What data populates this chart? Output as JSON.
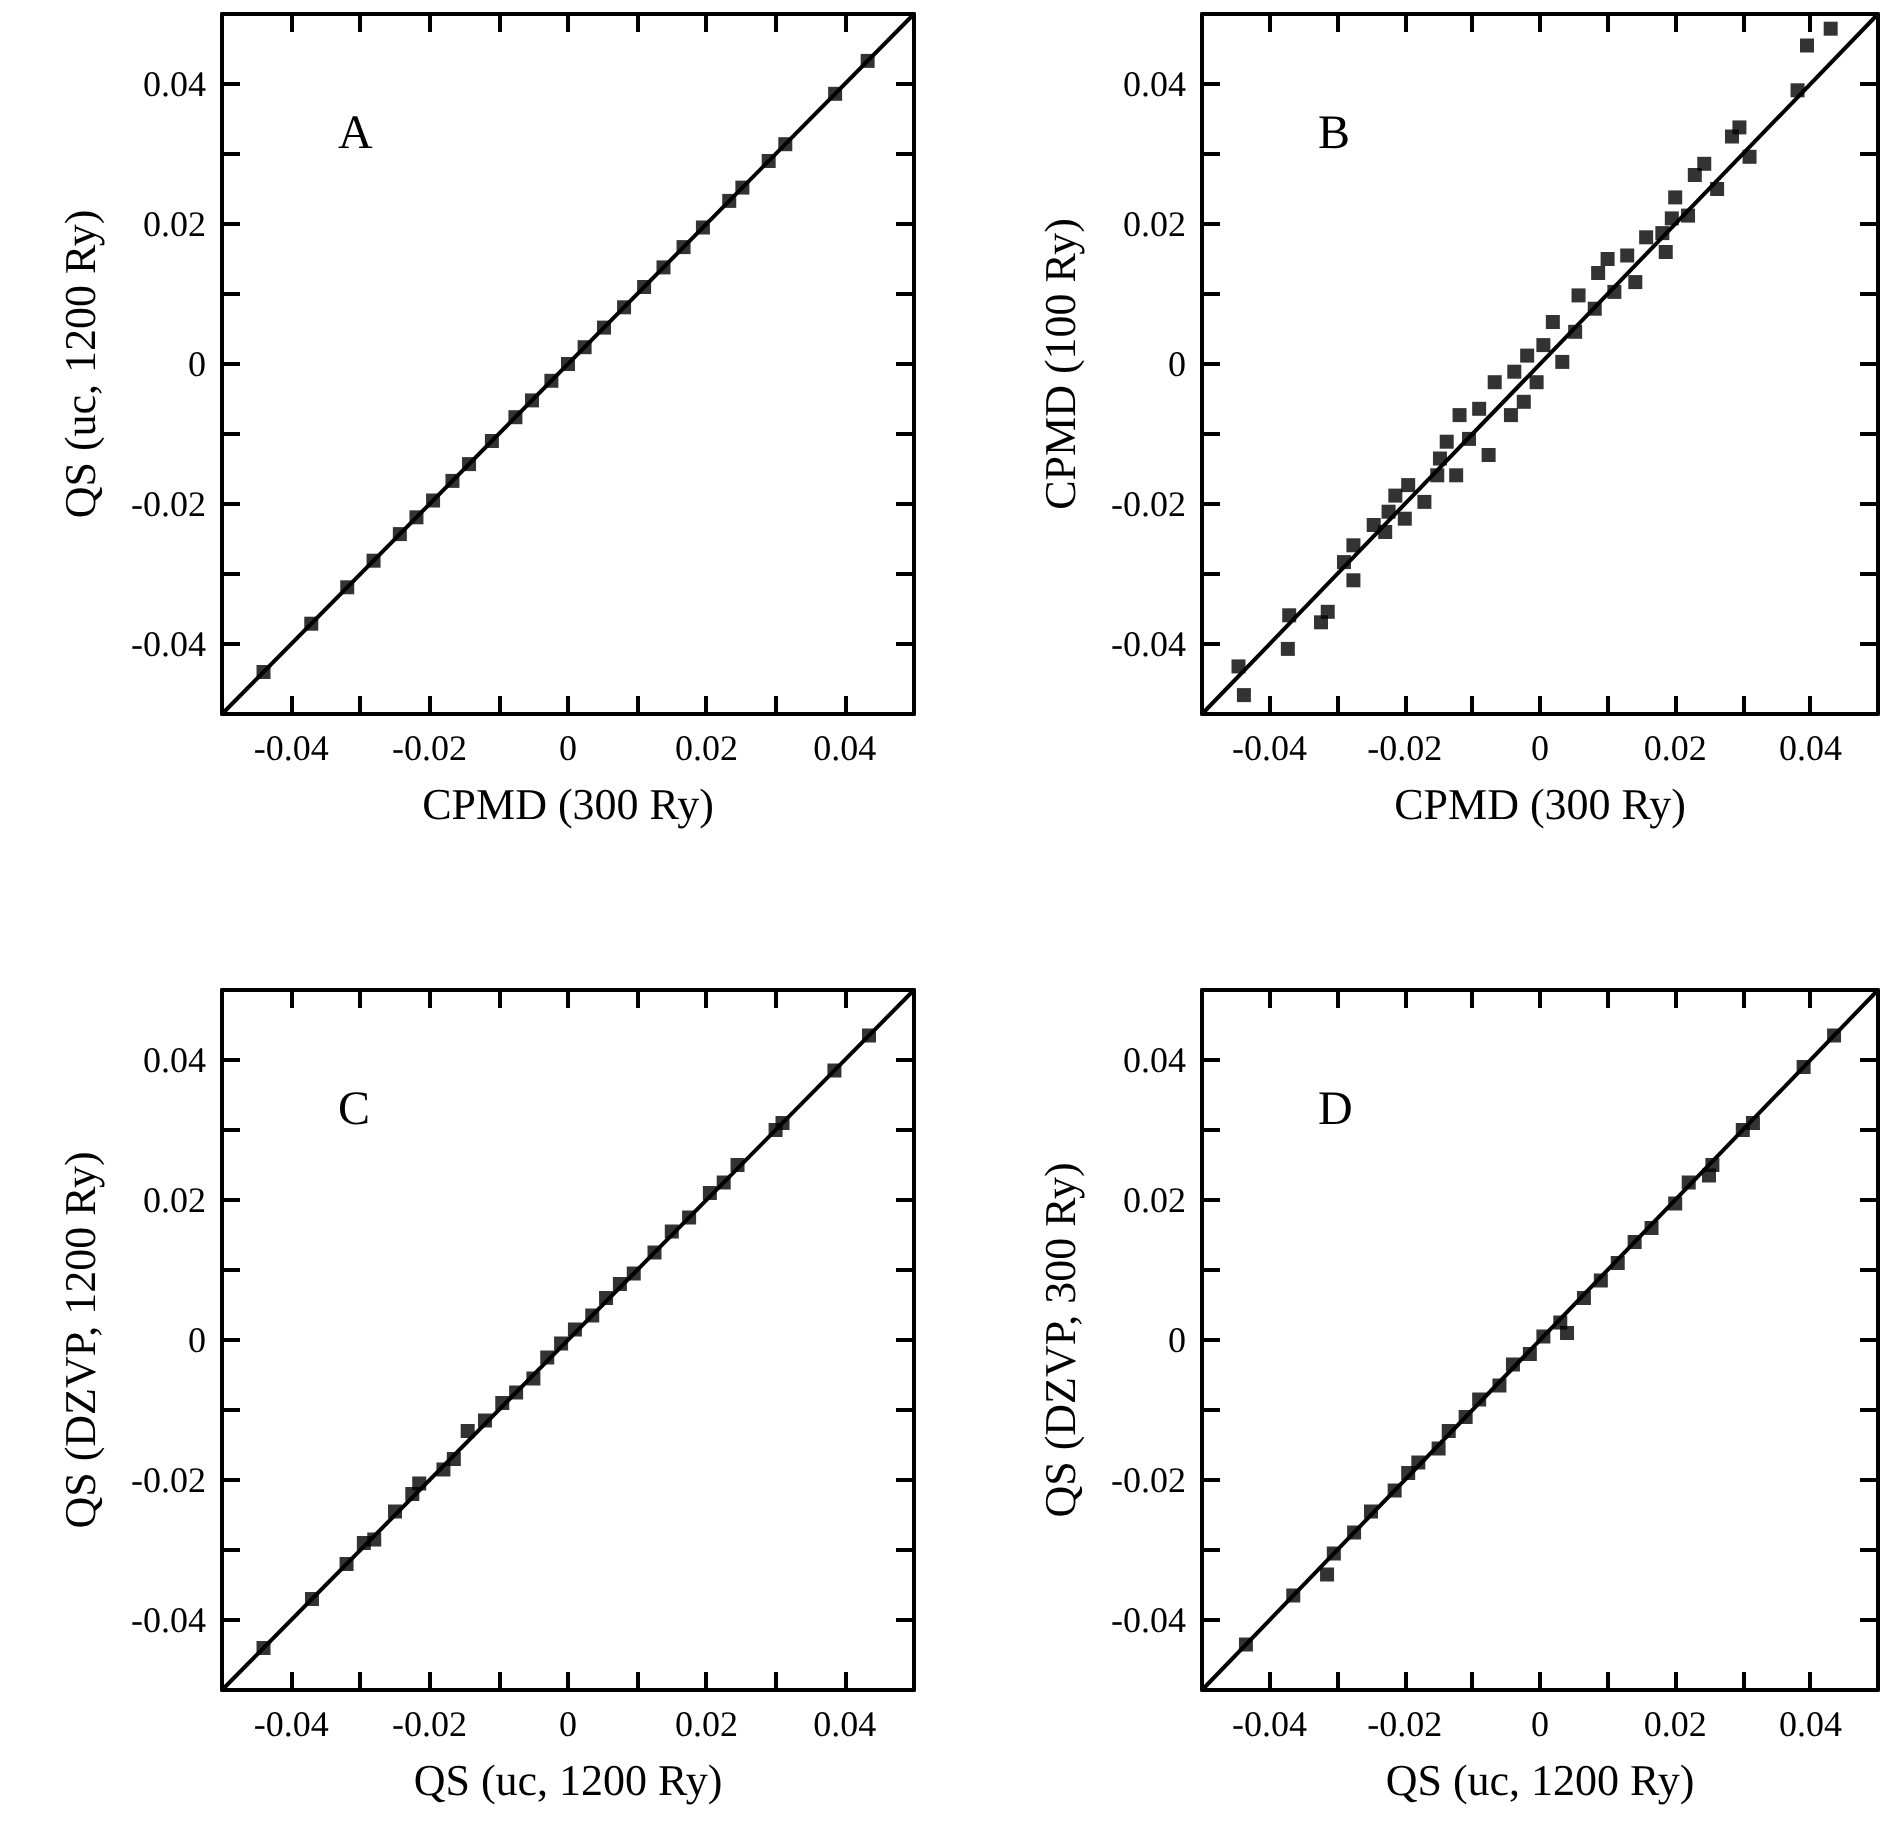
{
  "chart_data": [
    {
      "type": "scatter",
      "xlabel": "CPMD (300 Ry)",
      "ylabel": "QS (uc, 1200 Ry)",
      "annotations": [
        "A"
      ],
      "marker": "square",
      "xlim": [
        -0.05,
        0.05
      ],
      "ylim": [
        -0.05,
        0.05
      ],
      "xticks": [
        {
          "value": -0.05,
          "label": null
        },
        -0.04,
        {
          "value": -0.03,
          "label": null
        },
        -0.02,
        {
          "value": -0.01,
          "label": null
        },
        0,
        {
          "value": 0.01,
          "label": null
        },
        0.02,
        {
          "value": 0.03,
          "label": null
        },
        0.04,
        {
          "value": 0.05,
          "label": null
        }
      ],
      "yticks": [
        {
          "value": -0.05,
          "label": null
        },
        -0.04,
        {
          "value": -0.03,
          "label": null
        },
        -0.02,
        {
          "value": -0.01,
          "label": null
        },
        0,
        {
          "value": 0.01,
          "label": null
        },
        0.02,
        {
          "value": 0.03,
          "label": null
        },
        0.04,
        {
          "value": 0.05,
          "label": null
        }
      ],
      "series": [
        {
          "color": "#000000",
          "x": [
            -0.044,
            -0.0371,
            -0.0319,
            -0.0281,
            -0.0243,
            -0.0219,
            -0.0195,
            -0.0167,
            -0.0143,
            -0.011,
            -0.0076,
            -0.0052,
            -0.0024,
            0,
            0.0024,
            0.0052,
            0.0081,
            0.011,
            0.0138,
            0.0167,
            0.0195,
            0.0233,
            0.0252,
            0.029,
            0.0314,
            0.0386,
            0.0433
          ],
          "values": [
            -0.044,
            -0.0371,
            -0.0319,
            -0.0281,
            -0.0243,
            -0.0219,
            -0.0195,
            -0.0167,
            -0.0143,
            -0.011,
            -0.0076,
            -0.0052,
            -0.0024,
            0,
            0.0024,
            0.0052,
            0.0081,
            0.011,
            0.0138,
            0.0167,
            0.0195,
            0.0233,
            0.0252,
            0.029,
            0.0314,
            0.0386,
            0.0433
          ]
        },
        {
          "type": "line",
          "color": "#000000",
          "marker": "none",
          "x": [
            -0.05,
            0.05
          ],
          "values": [
            -0.05,
            0.05
          ]
        }
      ]
    },
    {
      "type": "scatter",
      "xlabel": "CPMD (300 Ry)",
      "ylabel": "CPMD (100 Ry)",
      "annotations": [
        "B"
      ],
      "marker": "square",
      "xlim": [
        -0.05,
        0.05
      ],
      "ylim": [
        -0.05,
        0.05
      ],
      "xticks": [
        {
          "value": -0.05,
          "label": null
        },
        -0.04,
        {
          "value": -0.03,
          "label": null
        },
        -0.02,
        {
          "value": -0.01,
          "label": null
        },
        0,
        {
          "value": 0.01,
          "label": null
        },
        0.02,
        {
          "value": 0.03,
          "label": null
        },
        0.04,
        {
          "value": 0.05,
          "label": null
        }
      ],
      "yticks": [
        {
          "value": -0.05,
          "label": null
        },
        -0.04,
        {
          "value": -0.03,
          "label": null
        },
        -0.02,
        {
          "value": -0.01,
          "label": null
        },
        0,
        {
          "value": 0.01,
          "label": null
        },
        0.02,
        {
          "value": 0.03,
          "label": null
        },
        0.04,
        {
          "value": 0.05,
          "label": null
        }
      ],
      "series": [
        {
          "color": "#000000",
          "x": [
            0.043,
            0.0395,
            0.0381,
            0.0295,
            0.0284,
            0.031,
            0.0243,
            0.0229,
            0.0262,
            0.02,
            0.0195,
            0.0219,
            0.0181,
            0.0157,
            0.0186,
            0.0129,
            0.01,
            0.0141,
            0.0086,
            0.011,
            0.0057,
            0.0081,
            0.0019,
            0.0052,
            0.0033,
            0.0005,
            -0.0019,
            -0.0005,
            -0.0038,
            -0.0067,
            -0.0024,
            -0.0043,
            -0.009,
            -0.0119,
            -0.0076,
            -0.0105,
            -0.0138,
            -0.0148,
            -0.0124,
            -0.0152,
            -0.0195,
            -0.0214,
            -0.0171,
            -0.02,
            -0.0224,
            -0.0246,
            -0.0229,
            -0.0276,
            -0.029,
            -0.0276,
            -0.0314,
            -0.0324,
            -0.0371,
            -0.0373,
            -0.0446,
            -0.0438
          ],
          "values": [
            0.0479,
            0.0455,
            0.0391,
            0.0338,
            0.0325,
            0.0296,
            0.0286,
            0.027,
            0.025,
            0.0238,
            0.0208,
            0.0212,
            0.0187,
            0.0181,
            0.016,
            0.0155,
            0.015,
            0.0117,
            0.013,
            0.0103,
            0.0098,
            0.0079,
            0.006,
            0.0046,
            0.0003,
            0.0027,
            0.0012,
            -0.0026,
            -0.0011,
            -0.0026,
            -0.0054,
            -0.0073,
            -0.0064,
            -0.0073,
            -0.013,
            -0.0107,
            -0.0111,
            -0.0135,
            -0.0159,
            -0.0159,
            -0.0173,
            -0.0188,
            -0.0197,
            -0.0221,
            -0.0211,
            -0.023,
            -0.024,
            -0.0259,
            -0.0283,
            -0.0309,
            -0.0354,
            -0.0369,
            -0.0359,
            -0.0407,
            -0.0432,
            -0.0473
          ]
        },
        {
          "type": "line",
          "color": "#000000",
          "marker": "none",
          "x": [
            -0.05,
            0.05
          ],
          "values": [
            -0.05,
            0.05
          ]
        }
      ]
    },
    {
      "type": "scatter",
      "xlabel": "QS (uc, 1200 Ry)",
      "ylabel": "QS (DZVP, 1200 Ry)",
      "annotations": [
        "C"
      ],
      "marker": "square",
      "xlim": [
        -0.05,
        0.05
      ],
      "ylim": [
        -0.05,
        0.05
      ],
      "xticks": [
        {
          "value": -0.05,
          "label": null
        },
        -0.04,
        {
          "value": -0.03,
          "label": null
        },
        -0.02,
        {
          "value": -0.01,
          "label": null
        },
        0,
        {
          "value": 0.01,
          "label": null
        },
        0.02,
        {
          "value": 0.03,
          "label": null
        },
        0.04,
        {
          "value": 0.05,
          "label": null
        }
      ],
      "yticks": [
        {
          "value": -0.05,
          "label": null
        },
        -0.04,
        {
          "value": -0.03,
          "label": null
        },
        -0.02,
        {
          "value": -0.01,
          "label": null
        },
        0,
        {
          "value": 0.01,
          "label": null
        },
        0.02,
        {
          "value": 0.03,
          "label": null
        },
        0.04,
        {
          "value": 0.05,
          "label": null
        }
      ],
      "series": [
        {
          "color": "#000000",
          "x": [
            -0.044,
            -0.037,
            -0.032,
            -0.0295,
            -0.028,
            -0.025,
            -0.0225,
            -0.0215,
            -0.018,
            -0.0165,
            -0.0145,
            -0.012,
            -0.0095,
            -0.0075,
            -0.005,
            -0.003,
            -0.001,
            0.001,
            0.0035,
            0.0055,
            0.0075,
            0.0095,
            0.0125,
            0.015,
            0.0175,
            0.0205,
            0.0225,
            0.0245,
            0.03,
            0.031,
            0.0385,
            0.0435
          ],
          "values": [
            -0.044,
            -0.037,
            -0.032,
            -0.029,
            -0.0285,
            -0.0245,
            -0.022,
            -0.0205,
            -0.0185,
            -0.017,
            -0.013,
            -0.0115,
            -0.009,
            -0.0075,
            -0.0055,
            -0.0025,
            -0.0005,
            0.0015,
            0.0035,
            0.006,
            0.008,
            0.0095,
            0.0125,
            0.0155,
            0.0175,
            0.021,
            0.0225,
            0.025,
            0.03,
            0.031,
            0.0385,
            0.0435
          ]
        },
        {
          "type": "line",
          "color": "#000000",
          "marker": "none",
          "x": [
            -0.05,
            0.05
          ],
          "values": [
            -0.05,
            0.05
          ]
        }
      ]
    },
    {
      "type": "scatter",
      "xlabel": "QS (uc, 1200 Ry)",
      "ylabel": "QS (DZVP, 300 Ry)",
      "annotations": [
        "D"
      ],
      "marker": "square",
      "xlim": [
        -0.05,
        0.05
      ],
      "ylim": [
        -0.05,
        0.05
      ],
      "xticks": [
        {
          "value": -0.05,
          "label": null
        },
        -0.04,
        {
          "value": -0.03,
          "label": null
        },
        -0.02,
        {
          "value": -0.01,
          "label": null
        },
        0,
        {
          "value": 0.01,
          "label": null
        },
        0.02,
        {
          "value": 0.03,
          "label": null
        },
        0.04,
        {
          "value": 0.05,
          "label": null
        }
      ],
      "yticks": [
        {
          "value": -0.05,
          "label": null
        },
        -0.04,
        {
          "value": -0.03,
          "label": null
        },
        -0.02,
        {
          "value": -0.01,
          "label": null
        },
        0,
        {
          "value": 0.01,
          "label": null
        },
        0.02,
        {
          "value": 0.03,
          "label": null
        },
        0.04,
        {
          "value": 0.05,
          "label": null
        }
      ],
      "series": [
        {
          "color": "#000000",
          "x": [
            -0.0435,
            -0.0365,
            -0.0315,
            -0.0305,
            -0.0275,
            -0.025,
            -0.0215,
            -0.0195,
            -0.018,
            -0.015,
            -0.0135,
            -0.011,
            -0.009,
            -0.006,
            -0.004,
            -0.0015,
            0.0005,
            0.003,
            0.004,
            0.0065,
            0.009,
            0.0115,
            0.014,
            0.0165,
            0.02,
            0.022,
            0.025,
            0.0255,
            0.03,
            0.0315,
            0.039,
            0.0435
          ],
          "values": [
            -0.0435,
            -0.0365,
            -0.0335,
            -0.0305,
            -0.0275,
            -0.0245,
            -0.0215,
            -0.019,
            -0.0175,
            -0.0155,
            -0.013,
            -0.011,
            -0.0085,
            -0.0065,
            -0.0035,
            -0.002,
            0.0005,
            0.0025,
            0.001,
            0.006,
            0.0085,
            0.011,
            0.014,
            0.016,
            0.0195,
            0.0225,
            0.0235,
            0.025,
            0.03,
            0.031,
            0.039,
            0.0435
          ]
        },
        {
          "type": "line",
          "color": "#000000",
          "marker": "none",
          "x": [
            -0.05,
            0.05
          ],
          "values": [
            -0.05,
            0.05
          ]
        }
      ]
    }
  ]
}
